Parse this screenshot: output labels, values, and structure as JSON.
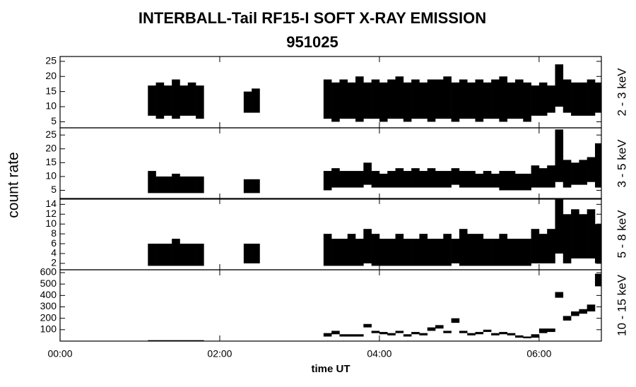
{
  "figure": {
    "title": "INTERBALL-Tail RF15-I SOFT X-RAY EMISSION",
    "subtitle": "951025",
    "ylabel": "count rate",
    "xlabel": "time UT"
  },
  "chart_data": [
    {
      "type": "range",
      "ylabel": "2 - 3 keV",
      "color": "#000000",
      "x": [
        0,
        0.1,
        0.2,
        0.3,
        0.4,
        0.5,
        0.6,
        0.7,
        0.8,
        0.9,
        1.0,
        1.1,
        1.2,
        1.3,
        1.4,
        1.5,
        1.6,
        1.7,
        1.8,
        1.9,
        2.0,
        2.1,
        2.2,
        2.3,
        2.4,
        2.5,
        2.6,
        2.7,
        2.8,
        2.9,
        3.0,
        3.1,
        3.2,
        3.3,
        3.4,
        3.5,
        3.6,
        3.7,
        3.8,
        3.9,
        4.0,
        4.1,
        4.2,
        4.3,
        4.4,
        4.5,
        4.6,
        4.7,
        4.8,
        4.9,
        5.0,
        5.1,
        5.2,
        5.3,
        5.4,
        5.5,
        5.6,
        5.7,
        5.8,
        5.9,
        6.0,
        6.1,
        6.2,
        6.3,
        6.4,
        6.5,
        6.6,
        6.7
      ],
      "xlim": [
        0,
        6.78
      ],
      "ylim": [
        3,
        26.6
      ],
      "yticks": [
        5,
        10,
        15,
        20,
        25
      ],
      "series": [
        {
          "values": [
            null,
            null,
            null,
            null,
            null,
            null,
            null,
            null,
            null,
            null,
            null,
            7,
            6,
            7,
            6,
            7,
            7,
            6,
            null,
            null,
            null,
            null,
            null,
            8,
            8,
            null,
            null,
            null,
            null,
            null,
            null,
            null,
            null,
            6,
            5,
            6,
            6,
            5,
            6,
            6,
            5,
            6,
            6,
            5,
            6,
            6,
            5,
            6,
            6,
            5,
            6,
            6,
            5,
            6,
            6,
            5,
            6,
            6,
            5,
            7,
            7,
            8,
            10,
            8,
            7,
            7,
            7,
            8
          ]
        },
        {
          "values": [
            null,
            null,
            null,
            null,
            null,
            null,
            null,
            null,
            null,
            null,
            null,
            17,
            18,
            17,
            19,
            17,
            18,
            17,
            null,
            null,
            null,
            null,
            null,
            15,
            16,
            null,
            null,
            null,
            null,
            null,
            null,
            null,
            null,
            19,
            18,
            19,
            18,
            20,
            18,
            19,
            18,
            19,
            20,
            18,
            19,
            18,
            19,
            19,
            20,
            18,
            19,
            18,
            19,
            18,
            19,
            20,
            18,
            19,
            18,
            17,
            18,
            17,
            24,
            19,
            18,
            18,
            19,
            18
          ]
        }
      ]
    },
    {
      "type": "range",
      "ylabel": "3 - 5 keV",
      "color": "#000000",
      "x": [
        0,
        0.1,
        0.2,
        0.3,
        0.4,
        0.5,
        0.6,
        0.7,
        0.8,
        0.9,
        1.0,
        1.1,
        1.2,
        1.3,
        1.4,
        1.5,
        1.6,
        1.7,
        1.8,
        1.9,
        2.0,
        2.1,
        2.2,
        2.3,
        2.4,
        2.5,
        2.6,
        2.7,
        2.8,
        2.9,
        3.0,
        3.1,
        3.2,
        3.3,
        3.4,
        3.5,
        3.6,
        3.7,
        3.8,
        3.9,
        4.0,
        4.1,
        4.2,
        4.3,
        4.4,
        4.5,
        4.6,
        4.7,
        4.8,
        4.9,
        5.0,
        5.1,
        5.2,
        5.3,
        5.4,
        5.5,
        5.6,
        5.7,
        5.8,
        5.9,
        6.0,
        6.1,
        6.2,
        6.3,
        6.4,
        6.5,
        6.6,
        6.7
      ],
      "xlim": [
        0,
        6.78
      ],
      "ylim": [
        1.8,
        27.6
      ],
      "yticks": [
        5,
        10,
        15,
        20,
        25
      ],
      "series": [
        {
          "values": [
            null,
            null,
            null,
            null,
            null,
            null,
            null,
            null,
            null,
            null,
            null,
            4,
            4,
            4,
            4,
            4,
            4,
            4,
            null,
            null,
            null,
            null,
            null,
            4,
            4,
            null,
            null,
            null,
            null,
            null,
            null,
            null,
            null,
            5,
            6,
            6,
            6,
            6,
            7,
            6,
            6,
            6,
            6,
            6,
            6,
            6,
            6,
            6,
            6,
            7,
            6,
            6,
            6,
            6,
            6,
            5,
            5,
            5,
            5,
            6,
            6,
            6,
            8,
            6,
            7,
            7,
            8,
            6
          ]
        },
        {
          "values": [
            null,
            null,
            null,
            null,
            null,
            null,
            null,
            null,
            null,
            null,
            null,
            12,
            10,
            10,
            11,
            10,
            10,
            10,
            null,
            null,
            null,
            null,
            null,
            9,
            9,
            null,
            null,
            null,
            null,
            null,
            null,
            null,
            null,
            12,
            13,
            12,
            12,
            12,
            15,
            12,
            11,
            12,
            13,
            12,
            13,
            12,
            13,
            12,
            12,
            13,
            12,
            12,
            11,
            12,
            11,
            12,
            12,
            11,
            11,
            14,
            13,
            14,
            27,
            16,
            15,
            16,
            17,
            22
          ]
        }
      ]
    },
    {
      "type": "range",
      "ylabel": "5 - 8 keV",
      "color": "#000000",
      "x": [
        0,
        0.1,
        0.2,
        0.3,
        0.4,
        0.5,
        0.6,
        0.7,
        0.8,
        0.9,
        1.0,
        1.1,
        1.2,
        1.3,
        1.4,
        1.5,
        1.6,
        1.7,
        1.8,
        1.9,
        2.0,
        2.1,
        2.2,
        2.3,
        2.4,
        2.5,
        2.6,
        2.7,
        2.8,
        2.9,
        3.0,
        3.1,
        3.2,
        3.3,
        3.4,
        3.5,
        3.6,
        3.7,
        3.8,
        3.9,
        4.0,
        4.1,
        4.2,
        4.3,
        4.4,
        4.5,
        4.6,
        4.7,
        4.8,
        4.9,
        5.0,
        5.1,
        5.2,
        5.3,
        5.4,
        5.5,
        5.6,
        5.7,
        5.8,
        5.9,
        6.0,
        6.1,
        6.2,
        6.3,
        6.4,
        6.5,
        6.6,
        6.7
      ],
      "xlim": [
        0,
        6.78
      ],
      "ylim": [
        0.7,
        15.2
      ],
      "yticks": [
        2,
        4,
        6,
        8,
        10,
        12,
        14
      ],
      "series": [
        {
          "values": [
            null,
            null,
            null,
            null,
            null,
            null,
            null,
            null,
            null,
            null,
            null,
            1.5,
            1.5,
            1.5,
            1.5,
            1.5,
            1.5,
            1.5,
            null,
            null,
            null,
            null,
            null,
            2,
            2,
            null,
            null,
            null,
            null,
            null,
            null,
            null,
            null,
            1.5,
            1.5,
            1.5,
            1.5,
            1.5,
            2,
            1.5,
            1.5,
            1.5,
            1.5,
            1.5,
            1.5,
            1.5,
            1.5,
            1.5,
            1.5,
            2,
            1.5,
            1.5,
            1.5,
            1.5,
            1.5,
            1.5,
            1.5,
            1.5,
            1.5,
            2,
            2,
            2,
            4,
            2,
            3,
            3,
            3,
            2
          ]
        },
        {
          "values": [
            null,
            null,
            null,
            null,
            null,
            null,
            null,
            null,
            null,
            null,
            null,
            6,
            6,
            6,
            7,
            6,
            6,
            6,
            null,
            null,
            null,
            null,
            null,
            6,
            6,
            null,
            null,
            null,
            null,
            null,
            null,
            null,
            null,
            8,
            7,
            7,
            8,
            7,
            9,
            8,
            7,
            7,
            8,
            7,
            7,
            8,
            7,
            7,
            8,
            7,
            9,
            8,
            8,
            7,
            7,
            8,
            7,
            7,
            7,
            9,
            8,
            9,
            15,
            12,
            13,
            12,
            13,
            10
          ]
        }
      ]
    },
    {
      "type": "range",
      "ylabel": "10 - 15 keV",
      "color": "#000000",
      "x": [
        0,
        0.1,
        0.2,
        0.3,
        0.4,
        0.5,
        0.6,
        0.7,
        0.8,
        0.9,
        1.0,
        1.1,
        1.2,
        1.3,
        1.4,
        1.5,
        1.6,
        1.7,
        1.8,
        1.9,
        2.0,
        2.1,
        2.2,
        2.3,
        2.4,
        2.5,
        2.6,
        2.7,
        2.8,
        2.9,
        3.0,
        3.1,
        3.2,
        3.3,
        3.4,
        3.5,
        3.6,
        3.7,
        3.8,
        3.9,
        4.0,
        4.1,
        4.2,
        4.3,
        4.4,
        4.5,
        4.6,
        4.7,
        4.8,
        4.9,
        5.0,
        5.1,
        5.2,
        5.3,
        5.4,
        5.5,
        5.6,
        5.7,
        5.8,
        5.9,
        6.0,
        6.1,
        6.2,
        6.3,
        6.4,
        6.5,
        6.6,
        6.7
      ],
      "xlim": [
        0,
        6.78
      ],
      "ylim": [
        0,
        625
      ],
      "yticks": [
        100,
        200,
        300,
        400,
        500,
        600
      ],
      "xticks": [
        {
          "value": 0,
          "label": "00:00"
        },
        {
          "value": 2,
          "label": "02:00"
        },
        {
          "value": 4,
          "label": "04:00"
        },
        {
          "value": 6,
          "label": "06:00"
        }
      ],
      "series": [
        {
          "values": [
            null,
            null,
            null,
            null,
            null,
            null,
            null,
            null,
            null,
            null,
            null,
            2,
            2,
            2,
            2,
            2,
            2,
            2,
            null,
            null,
            null,
            null,
            null,
            null,
            null,
            null,
            null,
            null,
            null,
            null,
            null,
            null,
            null,
            40,
            60,
            40,
            40,
            40,
            120,
            70,
            60,
            50,
            70,
            40,
            60,
            50,
            90,
            110,
            70,
            160,
            70,
            50,
            60,
            80,
            50,
            60,
            50,
            30,
            25,
            30,
            70,
            80,
            380,
            180,
            220,
            240,
            260,
            480
          ]
        },
        {
          "values": [
            null,
            null,
            null,
            null,
            null,
            null,
            null,
            null,
            null,
            null,
            null,
            8,
            8,
            8,
            8,
            8,
            8,
            8,
            null,
            null,
            null,
            null,
            null,
            null,
            null,
            null,
            null,
            null,
            null,
            null,
            null,
            null,
            null,
            70,
            90,
            60,
            60,
            60,
            150,
            90,
            80,
            70,
            90,
            60,
            80,
            70,
            120,
            140,
            90,
            200,
            90,
            70,
            80,
            100,
            70,
            80,
            70,
            50,
            40,
            60,
            110,
            110,
            430,
            220,
            260,
            280,
            320,
            590
          ]
        }
      ]
    }
  ]
}
